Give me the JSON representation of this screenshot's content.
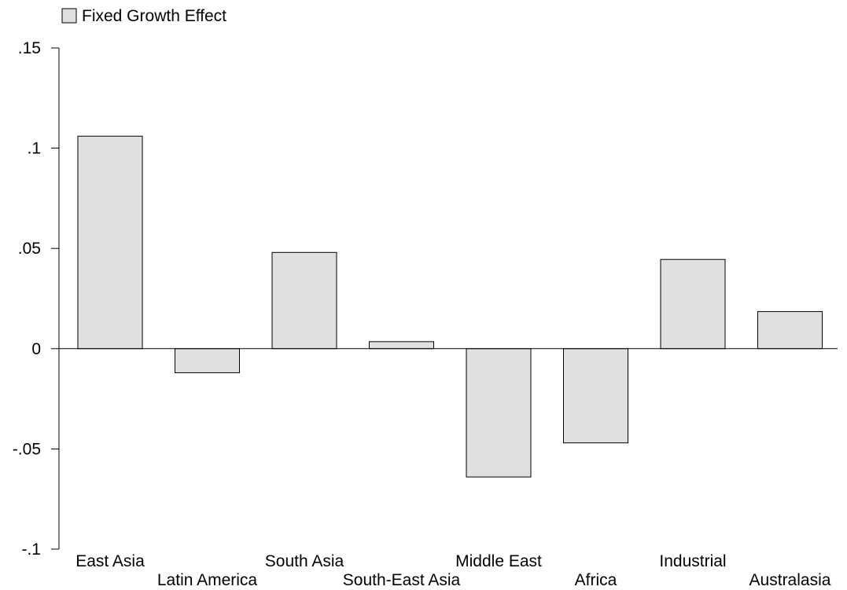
{
  "chart_data": {
    "type": "bar",
    "categories": [
      "East Asia",
      "Latin America",
      "South Asia",
      "South-East Asia",
      "Middle East",
      "Africa",
      "Industrial",
      "Australasia"
    ],
    "series": [
      {
        "name": "Fixed Growth Effect",
        "values": [
          0.106,
          -0.012,
          0.048,
          0.0035,
          -0.064,
          -0.047,
          0.0445,
          0.0185
        ],
        "color": "#e0e0e0"
      }
    ],
    "title": "",
    "xlabel": "",
    "ylabel": "",
    "ylim": [
      -0.1,
      0.15
    ],
    "yticks": [
      {
        "value": 0.15,
        "label": ".15"
      },
      {
        "value": 0.1,
        "label": ".1"
      },
      {
        "value": 0.05,
        "label": ".05"
      },
      {
        "value": 0,
        "label": "0"
      },
      {
        "value": -0.05,
        "label": "-.05"
      },
      {
        "value": -0.1,
        "label": "-.1"
      }
    ],
    "grid": false,
    "legend_position": "top-left",
    "category_label_layout": "staggered"
  }
}
